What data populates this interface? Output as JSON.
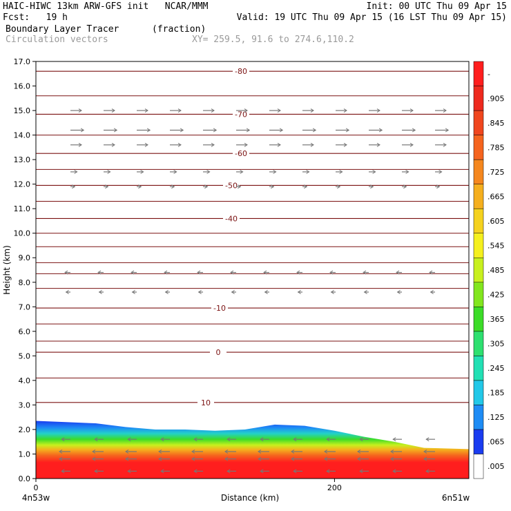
{
  "header": {
    "title": "HAIC-HIWC 13km ARW-GFS init   NCAR/MMM",
    "init": "Init: 00 UTC Thu 09 Apr 15",
    "fcst": "Fcst:   19 h",
    "valid": "Valid: 19 UTC Thu 09 Apr 15 (16 LST Thu 09 Apr 15)",
    "field": "Boundary Layer Tracer",
    "field_units": "(fraction)",
    "vectors": "Circulation vectors",
    "xy": "XY= 259.5, 91.6 to 274.6,110.2"
  },
  "chart_data": {
    "type": "area",
    "title": "",
    "xlabel": "Distance (km)",
    "ylabel": "Height (km)",
    "xlim": [
      0,
      290
    ],
    "ylim": [
      0,
      17
    ],
    "x_ticks": [
      0,
      200
    ],
    "x_tick_labels": [
      "0",
      "200"
    ],
    "x_end_labels": [
      "4n53w",
      "6n51w"
    ],
    "y_ticks": [
      0,
      1,
      2,
      3,
      4,
      5,
      6,
      7,
      8,
      9,
      10,
      11,
      12,
      13,
      14,
      15,
      16,
      17
    ],
    "y_tick_labels": [
      "0.0",
      "1.0",
      "2.0",
      "3.0",
      "4.0",
      "5.0",
      "6.0",
      "7.0",
      "8.0",
      "9.0",
      "10.0",
      "11.0",
      "12.0",
      "13.0",
      "14.0",
      "15.0",
      "16.0",
      "17.0"
    ],
    "colorbar": {
      "levels": [
        ".005",
        ".065",
        ".125",
        ".185",
        ".245",
        ".305",
        ".365",
        ".425",
        ".485",
        ".545",
        ".605",
        ".665",
        ".725",
        ".785",
        ".845",
        ".905",
        "-"
      ],
      "colors": [
        "#ffffff",
        "#1a3cf0",
        "#1e8cf5",
        "#22c8e8",
        "#22e0b4",
        "#2ee070",
        "#3cdc28",
        "#82e61e",
        "#c8f01e",
        "#f5f01e",
        "#f5d21e",
        "#f5af1e",
        "#f5871e",
        "#f5641e",
        "#f0461e",
        "#ee2a1e",
        "#ff1e1e"
      ]
    },
    "temperature_contours": {
      "color": "#7a1010",
      "levels": [
        {
          "label": "-80",
          "height": 16.6
        },
        {
          "label": "-70",
          "height": 14.85
        },
        {
          "label": "-60",
          "height": 13.25
        },
        {
          "label": "-50",
          "height": 11.95
        },
        {
          "label": "-40",
          "height": 10.6
        },
        {
          "label": "-10",
          "height": 6.95
        },
        {
          "label": "0",
          "height": 5.15
        },
        {
          "label": "10",
          "height": 3.1
        }
      ],
      "unlabeled_heights": [
        15.6,
        14.0,
        12.6,
        11.3,
        10.0,
        9.45,
        8.8,
        8.35,
        7.75,
        6.3,
        5.6,
        4.1
      ]
    },
    "tracer_top_km": {
      "x": [
        0,
        20,
        40,
        60,
        80,
        100,
        120,
        140,
        160,
        180,
        200,
        220,
        240,
        260,
        290
      ],
      "y": [
        2.35,
        2.3,
        2.25,
        2.1,
        2.0,
        2.0,
        1.95,
        2.0,
        2.2,
        2.15,
        1.95,
        1.7,
        1.5,
        1.25,
        1.2
      ]
    },
    "wind_rows": [
      {
        "height": 15.0,
        "u": 1.0
      },
      {
        "height": 14.2,
        "u": 1.2
      },
      {
        "height": 13.6,
        "u": 1.0
      },
      {
        "height": 12.5,
        "u": 0.6
      },
      {
        "height": 11.9,
        "u": 0.4
      },
      {
        "height": 8.4,
        "u": -0.5
      },
      {
        "height": 7.6,
        "u": -0.4
      },
      {
        "height": 1.6,
        "u": -0.8
      },
      {
        "height": 1.1,
        "u": -1.0
      },
      {
        "height": 0.8,
        "u": -1.0
      },
      {
        "height": 0.3,
        "u": -0.8
      }
    ]
  }
}
